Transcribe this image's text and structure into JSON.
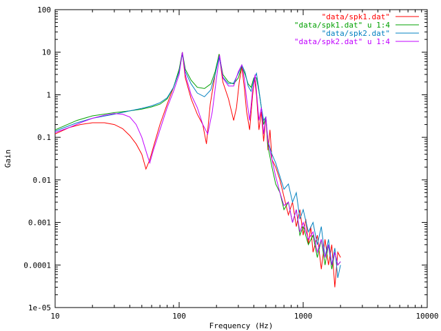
{
  "chart_data": {
    "type": "line",
    "xlabel": "Frequency (Hz)",
    "ylabel": "Gain",
    "xscale": "log",
    "yscale": "log",
    "xlim": [
      10,
      10000
    ],
    "ylim": [
      1e-05,
      100
    ],
    "x_ticks": [
      10,
      100,
      1000,
      10000
    ],
    "x_tick_labels": [
      "10",
      "100",
      "1000",
      "10000"
    ],
    "y_ticks": [
      1e-05,
      0.0001,
      0.001,
      0.01,
      0.1,
      1,
      10,
      100
    ],
    "y_tick_labels": [
      "1e-05",
      "0.0001",
      "0.001",
      "0.01",
      "0.1",
      "1",
      "10",
      "100"
    ],
    "grid": false,
    "legend_position": "top-right",
    "series": [
      {
        "name": "\"data/spk1.dat\"",
        "color": "#ff0000",
        "x": [
          10,
          13,
          16,
          20,
          25,
          30,
          35,
          40,
          45,
          50,
          54,
          58,
          63,
          70,
          80,
          90,
          100,
          106,
          112,
          125,
          140,
          155,
          166,
          178,
          195,
          210,
          225,
          250,
          275,
          290,
          305,
          320,
          335,
          350,
          370,
          390,
          405,
          420,
          440,
          460,
          480,
          500,
          520,
          540,
          560,
          600,
          650,
          700,
          760,
          820,
          880,
          940,
          1000,
          1050,
          1100,
          1150,
          1200,
          1300,
          1400,
          1500,
          1600,
          1700,
          1800,
          1900,
          2000
        ],
        "y": [
          0.12,
          0.17,
          0.2,
          0.22,
          0.22,
          0.2,
          0.16,
          0.11,
          0.07,
          0.04,
          0.018,
          0.03,
          0.07,
          0.2,
          0.6,
          1.5,
          3.5,
          10,
          2.5,
          0.8,
          0.35,
          0.2,
          0.07,
          0.6,
          3,
          9,
          2,
          0.8,
          0.25,
          0.5,
          2,
          4.6,
          1.5,
          0.4,
          0.15,
          0.9,
          2.5,
          1,
          0.15,
          0.4,
          0.08,
          0.3,
          0.05,
          0.15,
          0.03,
          0.02,
          0.01,
          0.004,
          0.0015,
          0.003,
          0.0008,
          0.002,
          0.0005,
          0.0012,
          0.0003,
          0.0008,
          0.0002,
          0.0005,
          8e-05,
          0.0004,
          0.0001,
          0.0003,
          3e-05,
          0.0002,
          0.00015
        ]
      },
      {
        "name": "\"data/spk1.dat\" u 1:4",
        "color": "#00a000",
        "x": [
          10,
          15,
          20,
          30,
          40,
          50,
          60,
          70,
          80,
          90,
          100,
          106,
          112,
          125,
          140,
          160,
          180,
          195,
          210,
          225,
          250,
          275,
          300,
          320,
          340,
          360,
          380,
          400,
          420,
          440,
          460,
          480,
          500,
          520,
          560,
          600,
          650,
          700,
          760,
          820,
          880,
          940,
          1000,
          1100,
          1200,
          1300,
          1400,
          1500,
          1600,
          1700,
          1800,
          1900,
          2000
        ],
        "y": [
          0.15,
          0.25,
          0.32,
          0.38,
          0.42,
          0.46,
          0.52,
          0.6,
          0.8,
          1.5,
          4,
          10,
          4,
          2.2,
          1.5,
          1.4,
          1.8,
          3.5,
          9,
          3,
          2,
          1.8,
          2.5,
          4.6,
          3,
          1.8,
          1.5,
          2.5,
          2.5,
          1.2,
          0.5,
          0.2,
          0.3,
          0.06,
          0.02,
          0.008,
          0.005,
          0.002,
          0.003,
          0.001,
          0.002,
          0.0005,
          0.0008,
          0.0003,
          0.0005,
          0.00015,
          0.0004,
          0.0001,
          0.0003,
          8e-05,
          0.0002,
          0.0001,
          0.00012
        ]
      },
      {
        "name": "\"data/spk2.dat\"",
        "color": "#0080c0",
        "x": [
          10,
          15,
          20,
          30,
          40,
          50,
          60,
          70,
          80,
          90,
          100,
          106,
          112,
          125,
          140,
          160,
          180,
          195,
          210,
          225,
          250,
          275,
          300,
          320,
          340,
          360,
          380,
          400,
          420,
          440,
          460,
          480,
          500,
          520,
          560,
          600,
          650,
          700,
          760,
          820,
          880,
          940,
          1000,
          1100,
          1200,
          1300,
          1400,
          1500,
          1600,
          1700,
          1800,
          1900,
          2000
        ],
        "y": [
          0.14,
          0.22,
          0.28,
          0.35,
          0.42,
          0.48,
          0.55,
          0.65,
          0.85,
          1.5,
          3.5,
          9,
          3.5,
          1.8,
          1.1,
          0.9,
          1.3,
          3,
          8,
          2.6,
          1.8,
          1.9,
          3.2,
          5,
          3.4,
          1.6,
          1.2,
          2.3,
          3.2,
          1.3,
          0.5,
          0.25,
          0.3,
          0.08,
          0.04,
          0.025,
          0.012,
          0.006,
          0.008,
          0.003,
          0.005,
          0.0012,
          0.002,
          0.0006,
          0.001,
          0.0003,
          0.0008,
          0.00015,
          0.0004,
          0.0001,
          0.00025,
          5e-05,
          0.0001
        ]
      },
      {
        "name": "\"data/spk2.dat\" u 1:4",
        "color": "#c000ff",
        "x": [
          10,
          13,
          16,
          20,
          25,
          30,
          35,
          40,
          45,
          50,
          55,
          58,
          62,
          70,
          80,
          90,
          100,
          106,
          112,
          125,
          140,
          155,
          170,
          185,
          200,
          212,
          225,
          250,
          275,
          300,
          320,
          335,
          350,
          370,
          390,
          410,
          420,
          440,
          460,
          480,
          500,
          520,
          560,
          600,
          650,
          700,
          760,
          820,
          880,
          940,
          1000,
          1100,
          1200,
          1300,
          1400,
          1500,
          1600,
          1700,
          1800,
          1900,
          2000
        ],
        "y": [
          0.13,
          0.17,
          0.22,
          0.28,
          0.33,
          0.36,
          0.35,
          0.3,
          0.2,
          0.1,
          0.04,
          0.025,
          0.05,
          0.15,
          0.5,
          1.2,
          3,
          10,
          3,
          1,
          0.5,
          0.2,
          0.12,
          0.4,
          2.5,
          8.5,
          2.5,
          1.6,
          1.6,
          3.5,
          5,
          2.5,
          0.8,
          0.25,
          1.2,
          3,
          1.2,
          0.25,
          0.5,
          0.12,
          0.3,
          0.08,
          0.03,
          0.012,
          0.005,
          0.0025,
          0.003,
          0.001,
          0.002,
          0.0006,
          0.001,
          0.0004,
          0.0006,
          0.0002,
          0.0004,
          0.00015,
          0.0003,
          0.0001,
          0.0002,
          0.0001,
          0.00012
        ]
      }
    ]
  }
}
